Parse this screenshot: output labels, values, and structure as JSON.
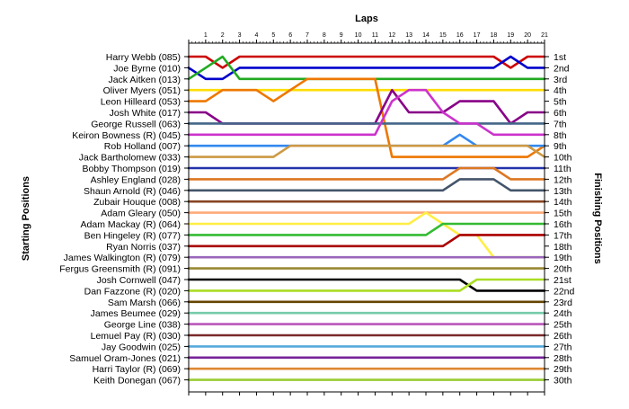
{
  "chart_data": {
    "type": "line",
    "title": "",
    "xlabel": "Laps",
    "ylabel_left": "Starting Positions",
    "ylabel_right": "Finishing Positions",
    "x_ticks": [
      "1",
      "2",
      "3",
      "4",
      "5",
      "6",
      "7",
      "8",
      "9",
      "10",
      "11",
      "12",
      "13",
      "14",
      "15",
      "16",
      "17",
      "18",
      "19",
      "20",
      "21"
    ],
    "position_labels": [
      "1st",
      "2nd",
      "3rd",
      "4th",
      "5th",
      "6th",
      "7th",
      "8th",
      "9th",
      "10th",
      "11th",
      "12th",
      "13th",
      "14th",
      "15th",
      "16th",
      "17th",
      "18th",
      "19th",
      "20th",
      "21st",
      "22nd",
      "23rd",
      "24th",
      "25th",
      "26th",
      "27th",
      "28th",
      "29th",
      "30th"
    ],
    "series": [
      {
        "name": "Harry Webb (085)",
        "color": "#cc0000",
        "positions": [
          1,
          1,
          2,
          1,
          1,
          1,
          1,
          1,
          1,
          1,
          1,
          1,
          1,
          1,
          1,
          1,
          1,
          1,
          1,
          2,
          1,
          1
        ]
      },
      {
        "name": "Joe Byrne (010)",
        "color": "#0000cc",
        "positions": [
          2,
          3,
          3,
          2,
          2,
          2,
          2,
          2,
          2,
          2,
          2,
          2,
          2,
          2,
          2,
          2,
          2,
          2,
          2,
          1,
          2,
          2
        ]
      },
      {
        "name": "Jack Aitken (013)",
        "color": "#22aa22",
        "positions": [
          3,
          2,
          1,
          3,
          3,
          3,
          3,
          3,
          3,
          3,
          3,
          3,
          3,
          3,
          3,
          3,
          3,
          3,
          3,
          3,
          3,
          3
        ]
      },
      {
        "name": "Oliver Myers (051)",
        "color": "#ffdd00",
        "positions": [
          4,
          4,
          4,
          4,
          4,
          4,
          4,
          4,
          4,
          4,
          4,
          4,
          4,
          4,
          4,
          4,
          4,
          4,
          4,
          4,
          4,
          4
        ]
      },
      {
        "name": "Leon Hilleard (053)",
        "color": "#ee7700",
        "positions": [
          5,
          5,
          4,
          4,
          4,
          5,
          4,
          3,
          3,
          3,
          3,
          3,
          10,
          10,
          10,
          10,
          10,
          10,
          10,
          10,
          10,
          9
        ]
      },
      {
        "name": "Josh White (017)",
        "color": "#880088",
        "positions": [
          6,
          6,
          7,
          7,
          7,
          7,
          7,
          7,
          7,
          7,
          7,
          7,
          4,
          6,
          6,
          6,
          5,
          5,
          5,
          7,
          6,
          6
        ]
      },
      {
        "name": "George Russell (063)",
        "color": "#446688",
        "positions": [
          7,
          7,
          7,
          7,
          7,
          7,
          7,
          7,
          7,
          7,
          7,
          7,
          7,
          7,
          7,
          7,
          7,
          7,
          7,
          7,
          7,
          7
        ]
      },
      {
        "name": "Keiron Bowness (R) (045)",
        "color": "#cc33cc",
        "positions": [
          8,
          8,
          8,
          8,
          8,
          8,
          8,
          8,
          8,
          8,
          8,
          8,
          5,
          4,
          4,
          6,
          7,
          7,
          8,
          8,
          8,
          8
        ]
      },
      {
        "name": "Rob Holland (007)",
        "color": "#3388ee",
        "positions": [
          9,
          9,
          9,
          9,
          9,
          9,
          9,
          9,
          9,
          9,
          9,
          9,
          9,
          9,
          9,
          9,
          8,
          9,
          9,
          9,
          9,
          9
        ]
      },
      {
        "name": "Jack Bartholomew (033)",
        "color": "#cc9944",
        "positions": [
          10,
          10,
          10,
          10,
          10,
          10,
          9,
          9,
          9,
          9,
          9,
          9,
          9,
          9,
          9,
          9,
          9,
          9,
          9,
          9,
          9,
          10
        ]
      },
      {
        "name": "Bobby Thompson (019)",
        "color": "#2233aa",
        "positions": [
          11,
          11,
          11,
          11,
          11,
          11,
          11,
          11,
          11,
          11,
          11,
          11,
          11,
          11,
          11,
          11,
          11,
          11,
          11,
          11,
          11,
          11
        ]
      },
      {
        "name": "Ashley England (028)",
        "color": "#dd7722",
        "positions": [
          12,
          12,
          12,
          12,
          12,
          12,
          12,
          12,
          12,
          12,
          12,
          12,
          12,
          12,
          12,
          12,
          11,
          11,
          11,
          12,
          12,
          12
        ]
      },
      {
        "name": "Shaun Arnold (R) (046)",
        "color": "#44556a",
        "positions": [
          13,
          13,
          13,
          13,
          13,
          13,
          13,
          13,
          13,
          13,
          13,
          13,
          13,
          13,
          13,
          13,
          12,
          12,
          12,
          13,
          13,
          13
        ]
      },
      {
        "name": "Zubair Houque (008)",
        "color": "#884422",
        "positions": [
          14,
          14,
          14,
          14,
          14,
          14,
          14,
          14,
          14,
          14,
          14,
          14,
          14,
          14,
          14,
          14,
          14,
          14,
          14,
          14,
          14,
          14
        ]
      },
      {
        "name": "Adam Gleary (050)",
        "color": "#ffaa77",
        "positions": [
          15,
          15,
          15,
          15,
          15,
          15,
          15,
          15,
          15,
          15,
          15,
          15,
          15,
          15,
          15,
          15,
          15,
          15,
          15,
          15,
          15,
          15
        ]
      },
      {
        "name": "Adam Mackay (R) (064)",
        "color": "#ffee44",
        "positions": [
          16,
          16,
          16,
          16,
          16,
          16,
          16,
          16,
          16,
          16,
          16,
          16,
          16,
          16,
          15,
          16,
          17,
          17,
          19,
          19,
          19,
          19
        ]
      },
      {
        "name": "Ben Hingeley (R) (077)",
        "color": "#33bb33",
        "positions": [
          17,
          17,
          17,
          17,
          17,
          17,
          17,
          17,
          17,
          17,
          17,
          17,
          17,
          17,
          17,
          16,
          16,
          16,
          16,
          16,
          16,
          16
        ]
      },
      {
        "name": "Ryan Norris (037)",
        "color": "#aa0000",
        "positions": [
          18,
          18,
          18,
          18,
          18,
          18,
          18,
          18,
          18,
          18,
          18,
          18,
          18,
          18,
          18,
          18,
          17,
          17,
          17,
          17,
          17,
          17
        ]
      },
      {
        "name": "James Walkington (R) (079)",
        "color": "#9966bb",
        "positions": [
          19,
          19,
          19,
          19,
          19,
          19,
          19,
          19,
          19,
          19,
          19,
          19,
          19,
          19,
          19,
          19,
          19,
          19,
          19,
          19,
          19,
          19
        ]
      },
      {
        "name": "Fergus Greensmith (R) (091)",
        "color": "#998833",
        "positions": [
          20,
          20,
          20,
          20,
          20,
          20,
          20,
          20,
          20,
          20,
          20,
          20,
          20,
          20,
          20,
          20,
          20,
          20,
          20,
          20,
          20,
          20
        ]
      },
      {
        "name": "Josh Cornwell (047)",
        "color": "#000000",
        "positions": [
          21,
          21,
          21,
          21,
          21,
          21,
          21,
          21,
          21,
          21,
          21,
          21,
          21,
          21,
          21,
          21,
          21,
          22,
          22,
          22,
          22,
          22
        ]
      },
      {
        "name": "Dan Fazzone (R) (020)",
        "color": "#aadd22",
        "positions": [
          22,
          22,
          22,
          22,
          22,
          22,
          22,
          22,
          22,
          22,
          22,
          22,
          22,
          22,
          22,
          22,
          22,
          21,
          21,
          21,
          21,
          21
        ]
      },
      {
        "name": "Sam Marsh (066)",
        "color": "#664400",
        "positions": [
          23,
          23,
          23,
          23,
          23,
          23,
          23,
          23,
          23,
          23,
          23,
          23,
          23,
          23,
          23,
          23,
          23,
          23,
          23,
          23,
          23,
          23
        ]
      },
      {
        "name": "James Beumee (029)",
        "color": "#77ccaa",
        "positions": [
          24,
          24,
          24,
          24,
          24,
          24,
          24,
          24,
          24,
          24,
          24,
          24,
          24,
          24,
          24,
          24,
          24,
          24,
          24,
          24,
          24,
          24
        ]
      },
      {
        "name": "George Line (038)",
        "color": "#bb55bb",
        "positions": [
          25,
          25,
          25,
          25,
          25,
          25,
          25,
          25,
          25,
          25,
          25,
          25,
          25,
          25,
          25,
          25,
          25,
          25,
          25,
          25,
          25,
          25
        ]
      },
      {
        "name": "Lemuel Pay (R) (030)",
        "color": "#7a2a2a",
        "positions": [
          26,
          26,
          26,
          26,
          26,
          26,
          26,
          26,
          26,
          26,
          26,
          26,
          26,
          26,
          26,
          26,
          26,
          26,
          26,
          26,
          26,
          26
        ]
      },
      {
        "name": "Jay Goodwin (025)",
        "color": "#55aadd",
        "positions": [
          27,
          27,
          27,
          27,
          27,
          27,
          27,
          27,
          27,
          27,
          27,
          27,
          27,
          27,
          27,
          27,
          27,
          27,
          27,
          27,
          27,
          27
        ]
      },
      {
        "name": "Samuel Oram-Jones (021)",
        "color": "#772299",
        "positions": [
          28,
          28,
          28,
          28,
          28,
          28,
          28,
          28,
          28,
          28,
          28,
          28,
          28,
          28,
          28,
          28,
          28,
          28,
          28,
          28,
          28,
          28
        ]
      },
      {
        "name": "Harri Taylor (R) (069)",
        "color": "#dd8833",
        "positions": [
          29,
          29,
          29,
          29,
          29,
          29,
          29,
          29,
          29,
          29,
          29,
          29,
          29,
          29,
          29,
          29,
          29,
          29,
          29,
          29,
          29,
          29
        ]
      },
      {
        "name": "Keith Donegan (067)",
        "color": "#99cc33",
        "positions": [
          30,
          30,
          30,
          30,
          30,
          30,
          30,
          30,
          30,
          30,
          30,
          30,
          30,
          30,
          30,
          30,
          30,
          30,
          30,
          30,
          30,
          30
        ]
      }
    ]
  }
}
